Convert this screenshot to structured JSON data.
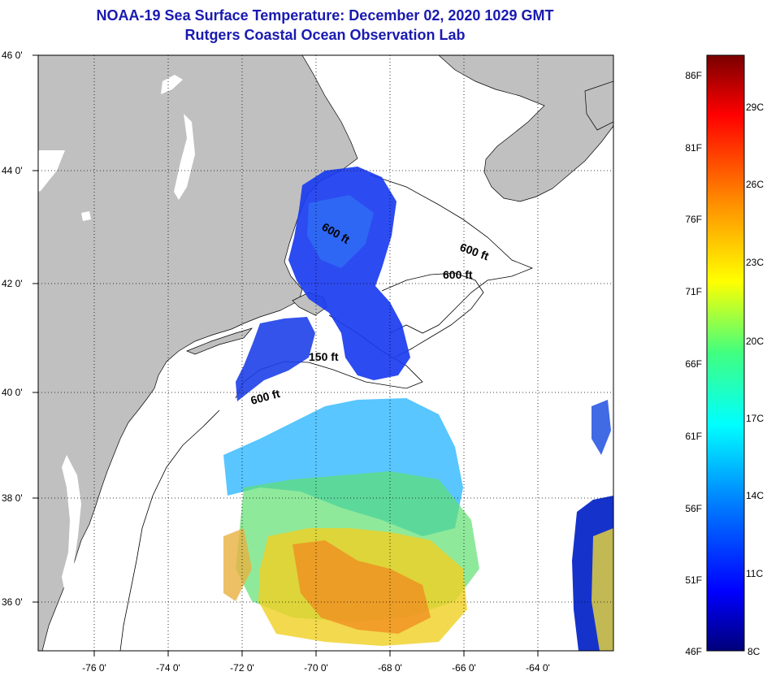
{
  "title": "NOAA-19 Sea Surface Temperature:  December 02, 2020 1029 GMT",
  "subtitle": "Rutgers Coastal Ocean Observation Lab",
  "map": {
    "lat_labels": [
      "46 0'",
      "44 0'",
      "42 0'",
      "40 0'",
      "38 0'",
      "36 0'"
    ],
    "lon_labels": [
      "-76 0'",
      "-74 0'",
      "-72 0'",
      "-70 0'",
      "-68 0'",
      "-66 0'",
      "-64 0'"
    ],
    "contour_labels": [
      "600 ft",
      "600 ft",
      "600 ft",
      "150 ft",
      "600 ft"
    ]
  },
  "colorbar": {
    "fahrenheit": [
      "86F",
      "81F",
      "76F",
      "71F",
      "66F",
      "61F",
      "56F",
      "51F",
      "46F"
    ],
    "celsius": [
      "29C",
      "26C",
      "23C",
      "20C",
      "17C",
      "14C",
      "11C",
      "8C"
    ]
  },
  "colors": {
    "title": "#1a1ab0",
    "land": "#c0c0c0",
    "ocean": "#ffffff"
  }
}
